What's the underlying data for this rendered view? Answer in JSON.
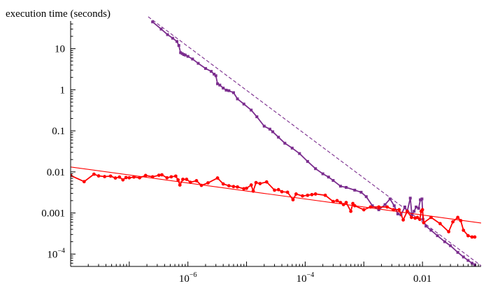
{
  "chart_data": {
    "type": "line",
    "title": "",
    "xlabel": "",
    "ylabel": "execution time (seconds)",
    "x_scale": "log",
    "y_scale": "log",
    "xlim": [
      1e-08,
      0.1
    ],
    "ylim": [
      5e-05,
      70
    ],
    "grid": false,
    "x_ticks": [
      {
        "value": 1e-06,
        "base": "10",
        "exp": "−6"
      },
      {
        "value": 0.0001,
        "base": "10",
        "exp": "−4"
      },
      {
        "value": 0.01,
        "base": "0.01",
        "exp": ""
      }
    ],
    "y_ticks": [
      {
        "value": 10,
        "base": "10",
        "exp": ""
      },
      {
        "value": 1,
        "base": "1",
        "exp": ""
      },
      {
        "value": 0.1,
        "base": "0.1",
        "exp": ""
      },
      {
        "value": 0.01,
        "base": "0.01",
        "exp": ""
      },
      {
        "value": 0.001,
        "base": "0.001",
        "exp": ""
      },
      {
        "value": 0.0001,
        "base": "10",
        "exp": "−4"
      }
    ],
    "series": [
      {
        "color": "#7b2d8e",
        "marker": "square",
        "style": "solid",
        "points": [
          [
            2.5e-07,
            45
          ],
          [
            3.5e-07,
            30
          ],
          [
            4.5e-07,
            22
          ],
          [
            5.5e-07,
            18
          ],
          [
            6.5e-07,
            15
          ],
          [
            7e-07,
            12
          ],
          [
            7.5e-07,
            8
          ],
          [
            8e-07,
            7.6
          ],
          [
            8.5e-07,
            7.2
          ],
          [
            9e-07,
            7
          ],
          [
            1e-06,
            6.5
          ],
          [
            1.2e-06,
            5.6
          ],
          [
            1.5e-06,
            4.4
          ],
          [
            2e-06,
            3.3
          ],
          [
            2.5e-06,
            2.8
          ],
          [
            2.8e-06,
            2.4
          ],
          [
            3e-06,
            2.2
          ],
          [
            3.2e-06,
            1.4
          ],
          [
            3.5e-06,
            1.3
          ],
          [
            4e-06,
            1.1
          ],
          [
            4.5e-06,
            0.98
          ],
          [
            5e-06,
            0.95
          ],
          [
            6e-06,
            0.85
          ],
          [
            7e-06,
            0.6
          ],
          [
            9e-06,
            0.45
          ],
          [
            1.2e-05,
            0.32
          ],
          [
            1.5e-05,
            0.22
          ],
          [
            2e-05,
            0.13
          ],
          [
            2.5e-05,
            0.11
          ],
          [
            2.8e-05,
            0.095
          ],
          [
            3.5e-05,
            0.07
          ],
          [
            4.5e-05,
            0.05
          ],
          [
            6e-05,
            0.038
          ],
          [
            8e-05,
            0.028
          ],
          [
            0.00011,
            0.018
          ],
          [
            0.00015,
            0.012
          ],
          [
            0.0002,
            0.009
          ],
          [
            0.00025,
            0.0075
          ],
          [
            0.0003,
            0.0062
          ],
          [
            0.0004,
            0.0045
          ],
          [
            0.0005,
            0.0042
          ],
          [
            0.0007,
            0.0036
          ],
          [
            0.0009,
            0.0032
          ],
          [
            0.0011,
            0.0025
          ],
          [
            0.0014,
            0.0015
          ],
          [
            0.0018,
            0.0012
          ],
          [
            0.0023,
            0.0016
          ],
          [
            0.0028,
            0.0022
          ],
          [
            0.0033,
            0.0015
          ],
          [
            0.0038,
            0.00095
          ],
          [
            0.0043,
            0.0009
          ],
          [
            0.005,
            0.0014
          ],
          [
            0.0055,
            0.0011
          ],
          [
            0.0062,
            0.0023
          ],
          [
            0.0066,
            0.0009
          ],
          [
            0.0072,
            0.0011
          ],
          [
            0.0078,
            0.0014
          ],
          [
            0.0086,
            0.0013
          ],
          [
            0.0092,
            0.0021
          ],
          [
            0.0098,
            0.0022
          ],
          [
            0.0102,
            0.0007
          ],
          [
            0.0115,
            0.00048
          ],
          [
            0.014,
            0.00038
          ],
          [
            0.018,
            0.00028
          ],
          [
            0.024,
            0.0002
          ],
          [
            0.03,
            0.00016
          ],
          [
            0.04,
            0.00011
          ],
          [
            0.05,
            8.5e-05
          ],
          [
            0.06,
            7e-05
          ],
          [
            0.07,
            6e-05
          ],
          [
            0.078,
            5.5e-05
          ]
        ]
      },
      {
        "color": "#7b2d8e",
        "style": "dashed",
        "points": [
          [
            2.1e-07,
            60
          ],
          [
            0.1,
            5.2e-05
          ]
        ]
      },
      {
        "color": "#ff0000",
        "marker": "circle",
        "style": "solid",
        "points": [
          [
            1e-08,
            0.0082
          ],
          [
            1.7e-08,
            0.0058
          ],
          [
            2.5e-08,
            0.0088
          ],
          [
            3e-08,
            0.008
          ],
          [
            3.8e-08,
            0.0077
          ],
          [
            4.8e-08,
            0.0079
          ],
          [
            5.8e-08,
            0.0071
          ],
          [
            6.8e-08,
            0.0075
          ],
          [
            7.8e-08,
            0.0064
          ],
          [
            8.8e-08,
            0.0073
          ],
          [
            1e-07,
            0.0072
          ],
          [
            1.2e-07,
            0.0075
          ],
          [
            1.5e-07,
            0.0072
          ],
          [
            1.9e-07,
            0.0082
          ],
          [
            2.5e-07,
            0.0076
          ],
          [
            3.2e-07,
            0.0083
          ],
          [
            3.6e-07,
            0.0085
          ],
          [
            4.4e-07,
            0.0072
          ],
          [
            5.2e-07,
            0.0076
          ],
          [
            6.2e-07,
            0.0079
          ],
          [
            6.8e-07,
            0.0064
          ],
          [
            7.3e-07,
            0.0048
          ],
          [
            8.2e-07,
            0.0066
          ],
          [
            9.5e-07,
            0.0066
          ],
          [
            1.1e-06,
            0.0056
          ],
          [
            1.4e-06,
            0.0061
          ],
          [
            1.7e-06,
            0.0047
          ],
          [
            2.2e-06,
            0.0054
          ],
          [
            3.2e-06,
            0.0071
          ],
          [
            4e-06,
            0.0051
          ],
          [
            5e-06,
            0.0046
          ],
          [
            6e-06,
            0.0044
          ],
          [
            7e-06,
            0.0043
          ],
          [
            9e-06,
            0.0039
          ],
          [
            1e-05,
            0.004
          ],
          [
            1.2e-05,
            0.0048
          ],
          [
            1.3e-05,
            0.0034
          ],
          [
            1.45e-05,
            0.0055
          ],
          [
            1.7e-05,
            0.0052
          ],
          [
            2.2e-05,
            0.0057
          ],
          [
            3e-05,
            0.0036
          ],
          [
            3.5e-05,
            0.0037
          ],
          [
            4e-05,
            0.0033
          ],
          [
            5e-05,
            0.0032
          ],
          [
            6.2e-05,
            0.0021
          ],
          [
            7e-05,
            0.0029
          ],
          [
            9e-05,
            0.0026
          ],
          [
            0.00011,
            0.0027
          ],
          [
            0.00013,
            0.0028
          ],
          [
            0.00015,
            0.0029
          ],
          [
            0.00022,
            0.0027
          ],
          [
            0.0003,
            0.0019
          ],
          [
            0.00035,
            0.002
          ],
          [
            0.0004,
            0.0018
          ],
          [
            0.00045,
            0.0016
          ],
          [
            0.0005,
            0.0018
          ],
          [
            0.0006,
            0.0011
          ],
          [
            0.00065,
            0.0017
          ],
          [
            0.0007,
            0.0015
          ],
          [
            0.001,
            0.0012
          ],
          [
            0.0013,
            0.0014
          ],
          [
            0.0018,
            0.0014
          ],
          [
            0.0025,
            0.0014
          ],
          [
            0.0032,
            0.0012
          ],
          [
            0.004,
            0.0012
          ],
          [
            0.0047,
            0.00068
          ],
          [
            0.0055,
            0.0011
          ],
          [
            0.0065,
            0.00078
          ],
          [
            0.0075,
            0.00075
          ],
          [
            0.0082,
            0.00078
          ],
          [
            0.009,
            0.0007
          ],
          [
            0.0095,
            0.0011
          ],
          [
            0.01,
            0.0012
          ],
          [
            0.0105,
            0.00058
          ],
          [
            0.014,
            0.00078
          ],
          [
            0.02,
            0.00055
          ],
          [
            0.028,
            0.00035
          ],
          [
            0.033,
            0.00061
          ],
          [
            0.04,
            0.00078
          ],
          [
            0.045,
            0.00065
          ],
          [
            0.05,
            0.00038
          ],
          [
            0.06,
            0.00028
          ],
          [
            0.07,
            0.00026
          ],
          [
            0.078,
            0.00026
          ]
        ]
      },
      {
        "color": "#ff0000",
        "style": "thin",
        "points": [
          [
            1e-08,
            0.0132
          ],
          [
            0.1,
            0.00057
          ]
        ]
      }
    ]
  }
}
